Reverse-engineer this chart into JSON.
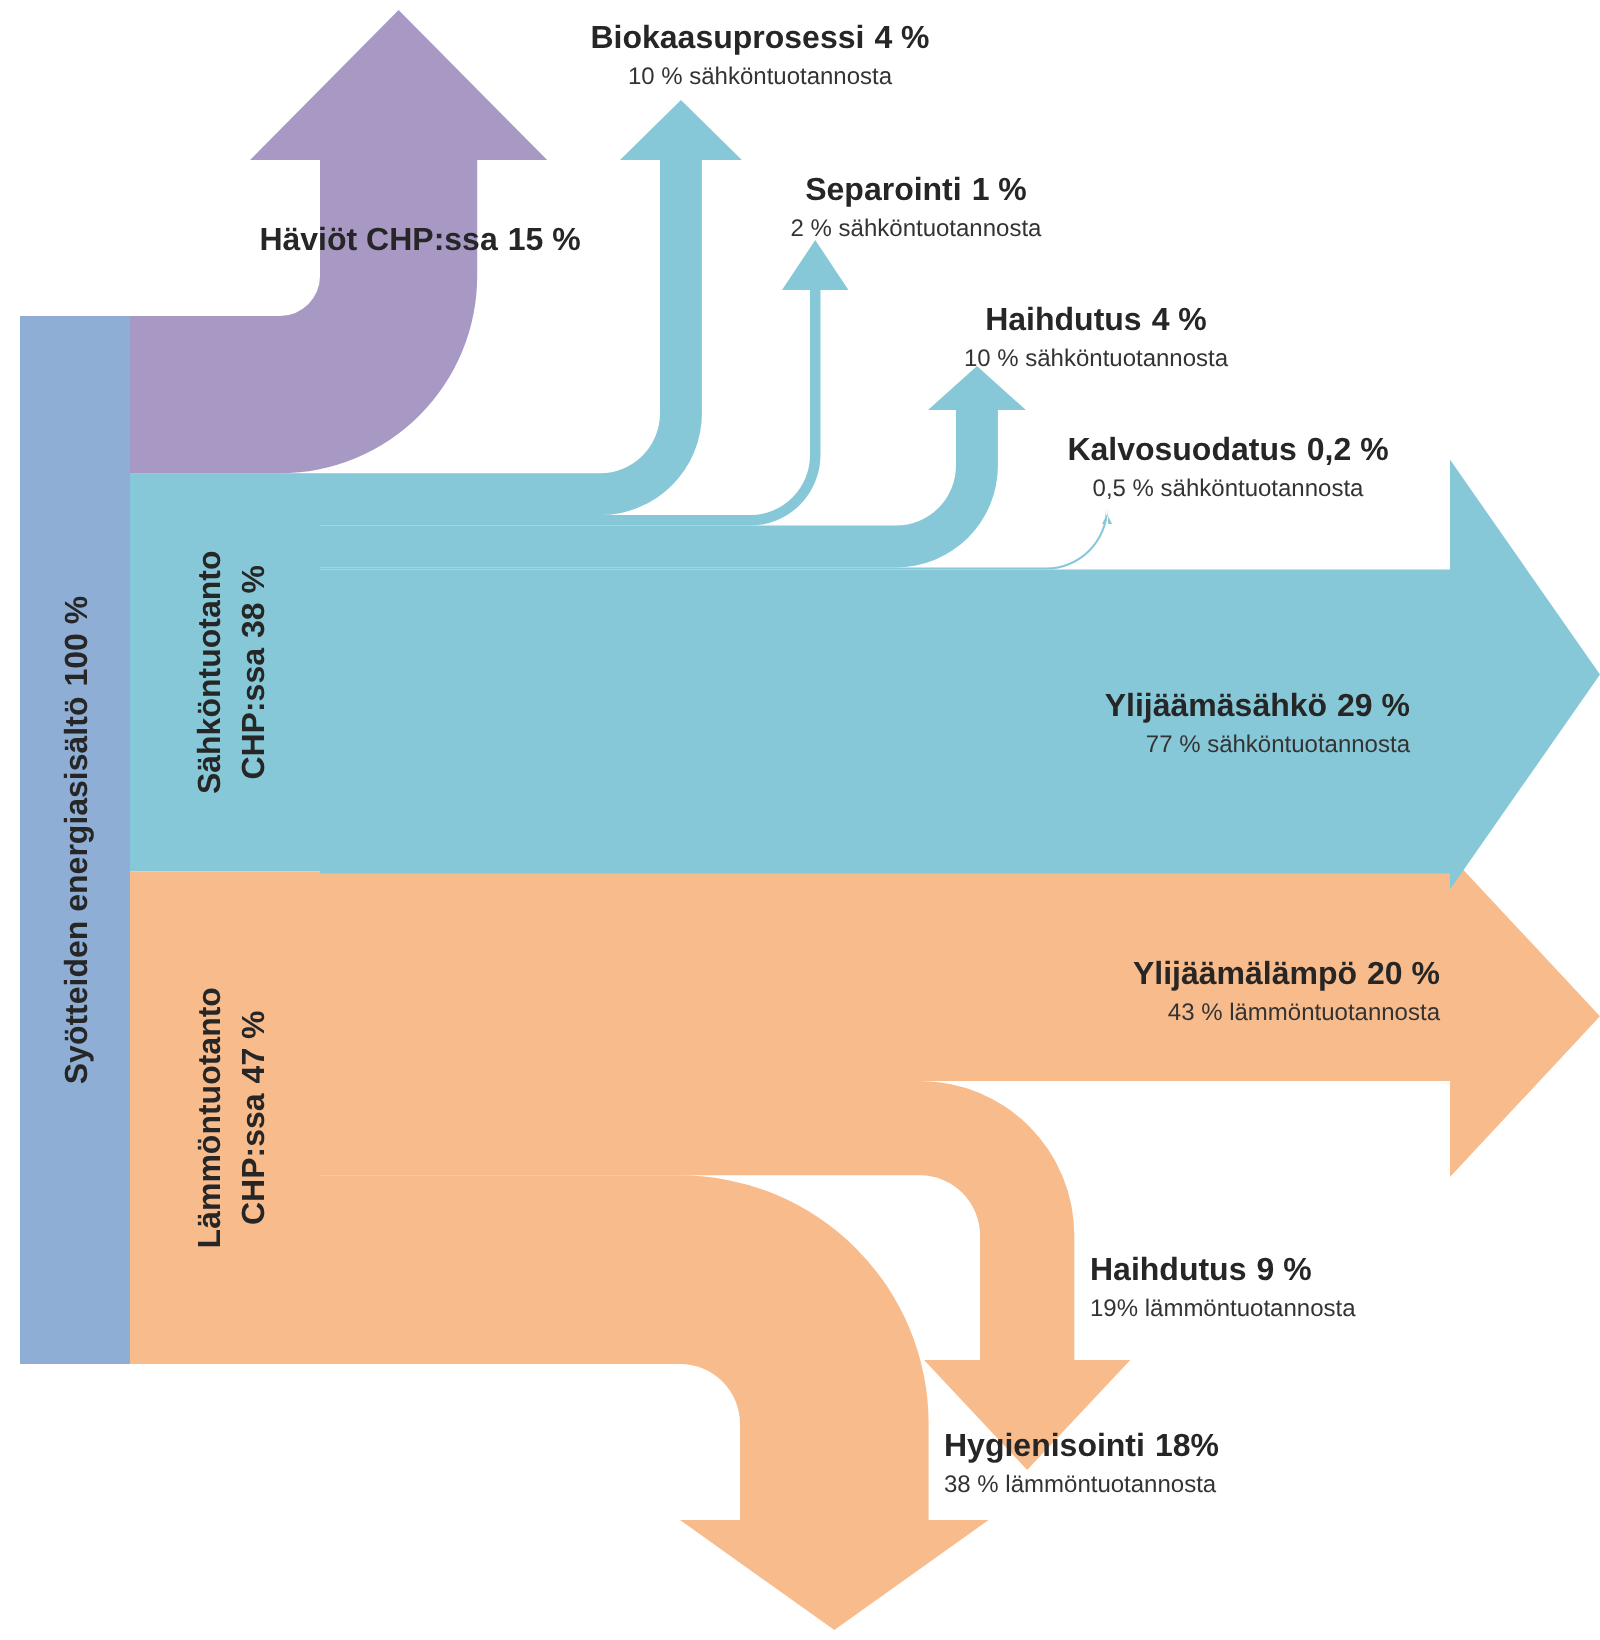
{
  "chart_data": {
    "type": "other",
    "categories": [
      "Syötteiden energiasisältö",
      "Häviöt CHP:ssa",
      "Sähköntuotanto CHP:ssa",
      "Lämmöntuotanto CHP:ssa",
      "Biokaasuprosessi",
      "Separointi",
      "Haihdutus",
      "Kalvosuodatus",
      "Ylijäämäsähkö",
      "Ylijäämälämpö",
      "Haihdutus",
      "Hygienisointi"
    ],
    "values": [
      100,
      15,
      38,
      47,
      4,
      1,
      4,
      0.2,
      29,
      20,
      9,
      18
    ],
    "value_labels": [
      "100 %",
      "15 %",
      "38 %",
      "47 %",
      "4 %",
      "1 %",
      "4 %",
      "0,2 %",
      "29 %",
      "20 %",
      "9 %",
      "18%"
    ],
    "colors": [
      "#8eaed6",
      "#a898c4",
      "#86c8d7",
      "#f8bb8c",
      "#86c8d7",
      "#86c8d7",
      "#86c8d7",
      "#86c8d7",
      "#86c8d7",
      "#f8bb8c",
      "#f8bb8c",
      "#f8bb8c"
    ],
    "annotations": [
      "10 % sähköntuotannosta",
      "2 % sähköntuotannosta",
      "10 % sähköntuotannosta",
      "0,5 % sähköntuotannosta",
      "77 % sähköntuotannosta",
      "43 % lämmöntuotannosta",
      "19% lämmöntuotannosta",
      "38 % lämmöntuotannosta"
    ]
  }
}
